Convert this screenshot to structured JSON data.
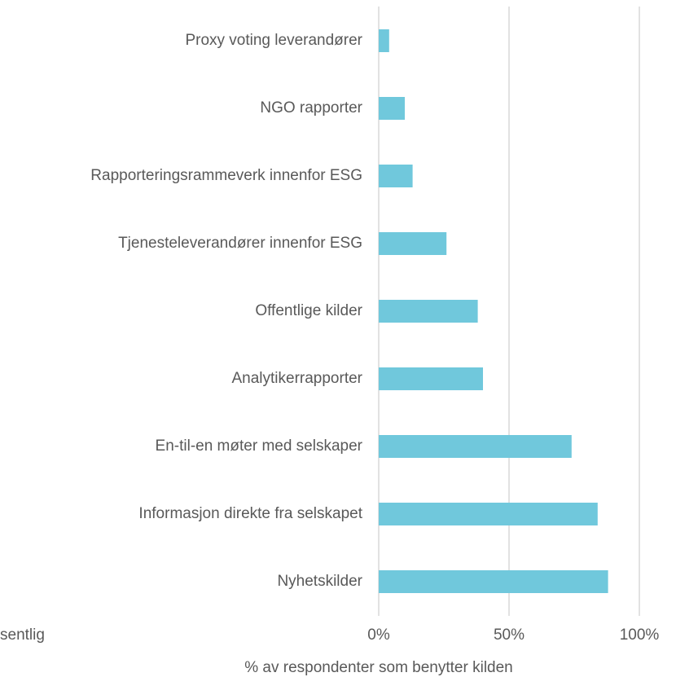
{
  "chart_data": {
    "type": "bar",
    "orientation": "horizontal",
    "categories": [
      "Proxy voting leverandører",
      "NGO rapporter",
      "Rapporteringsrammeverk innenfor ESG",
      "Tjenesteleverandører innenfor ESG",
      "Offentlige kilder",
      "Analytikerrapporter",
      "En-til-en møter med selskaper",
      "Informasjon direkte fra selskapet",
      "Nyhetskilder"
    ],
    "values": [
      4,
      10,
      13,
      26,
      38,
      40,
      74,
      84,
      88
    ],
    "color": "#70c8dc",
    "xlim": [
      0,
      100
    ],
    "xticks": [
      {
        "value": 0,
        "label": "0%"
      },
      {
        "value": 50,
        "label": "50%"
      },
      {
        "value": 100,
        "label": "100%"
      }
    ],
    "xlabel": "% av respondenter som benytter kilden",
    "annotation": "sentlig",
    "grid": true
  }
}
